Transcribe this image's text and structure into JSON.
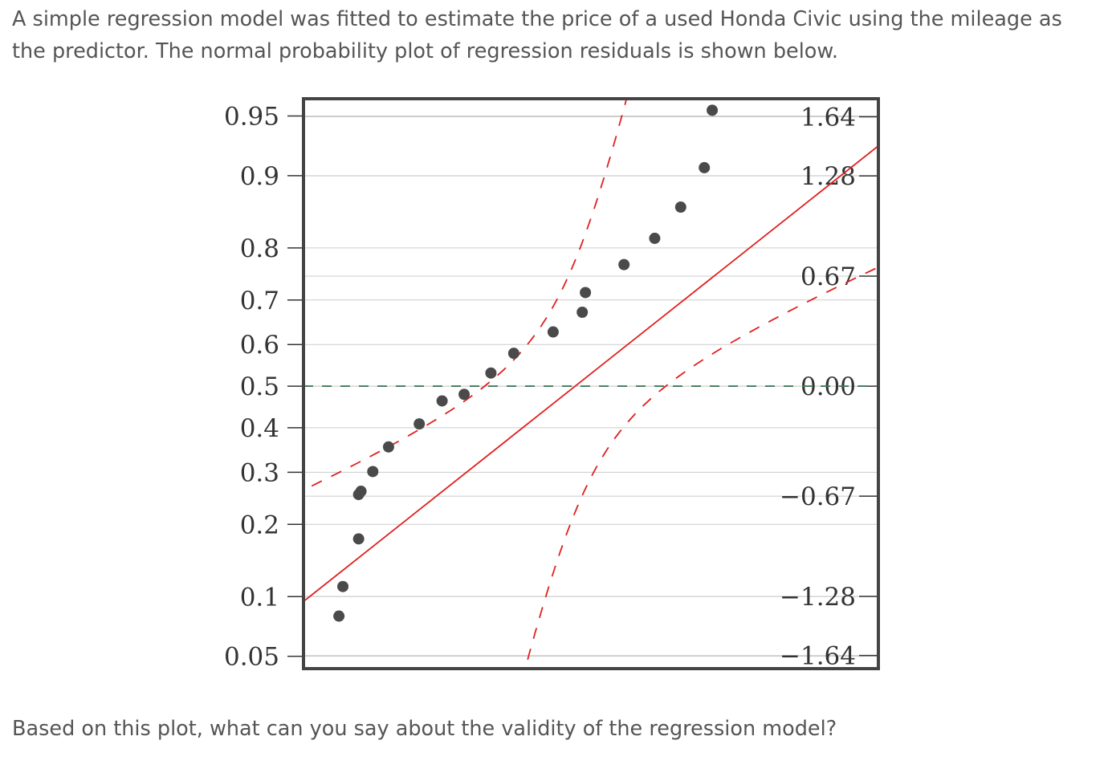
{
  "question": {
    "intro": "A simple regression model was fitted to estimate the price of a used Honda Civic using the mileage as the predictor. The normal probability plot of regression residuals is shown below.",
    "followup": "Based on this plot, what can you say about the validity of the regression model?"
  },
  "chart_data": {
    "type": "scatter",
    "title": "",
    "xlabel": "",
    "ylabel": "",
    "left_ticks": [
      "0.95",
      "0.9",
      "0.8",
      "0.7",
      "0.6",
      "0.5",
      "0.4",
      "0.3",
      "0.2",
      "0.1",
      "0.05"
    ],
    "right_ticks": [
      "1.64",
      "1.28",
      "0.67",
      "0.00",
      "−0.67",
      "−1.28",
      "−1.64"
    ],
    "grid": true,
    "zlim": [
      -1.72,
      1.75
    ],
    "xlim": [
      -3.45,
      3.85
    ],
    "points": [
      {
        "x": -3.0,
        "z": -1.4
      },
      {
        "x": -2.95,
        "z": -1.22
      },
      {
        "x": -2.75,
        "z": -0.93
      },
      {
        "x": -2.75,
        "z": -0.66
      },
      {
        "x": -2.72,
        "z": -0.64
      },
      {
        "x": -2.57,
        "z": -0.52
      },
      {
        "x": -2.37,
        "z": -0.37
      },
      {
        "x": -1.98,
        "z": -0.23
      },
      {
        "x": -1.69,
        "z": -0.09
      },
      {
        "x": -1.41,
        "z": -0.05
      },
      {
        "x": -1.07,
        "z": 0.08
      },
      {
        "x": -0.78,
        "z": 0.2
      },
      {
        "x": -0.28,
        "z": 0.33
      },
      {
        "x": 0.09,
        "z": 0.45
      },
      {
        "x": 0.13,
        "z": 0.57
      },
      {
        "x": 0.62,
        "z": 0.74
      },
      {
        "x": 1.01,
        "z": 0.9
      },
      {
        "x": 1.34,
        "z": 1.09
      },
      {
        "x": 1.64,
        "z": 1.33
      },
      {
        "x": 1.74,
        "z": 1.68
      }
    ],
    "fit_line": {
      "slope": 0.38,
      "intercept": 0.0
    },
    "zero_line": {
      "z": 0.0
    },
    "colors": {
      "points": "#4a4a4a",
      "fit_line": "#e02020",
      "confidence_band": "#e02020",
      "zero_line": "#3f7a5a",
      "frame": "#444444",
      "grid": "#cccccc"
    }
  }
}
